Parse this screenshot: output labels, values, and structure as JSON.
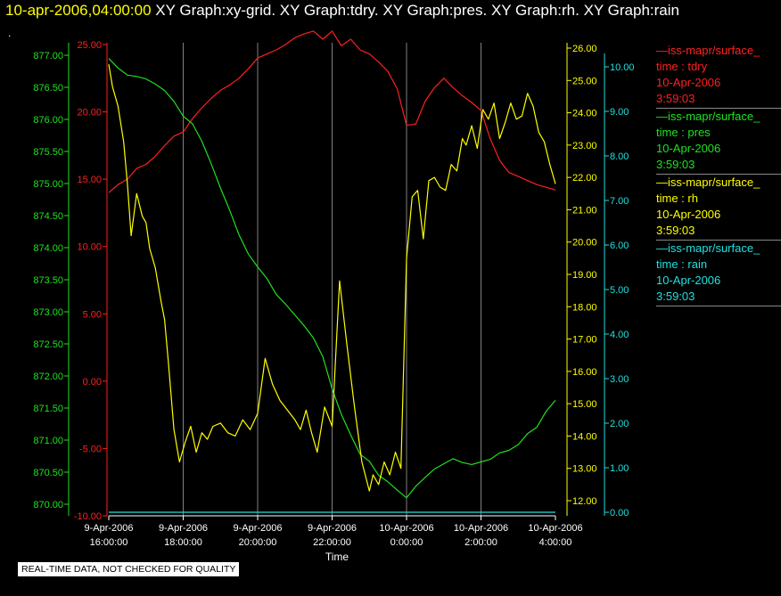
{
  "header": {
    "timestamp": "10-apr-2006,04:00:00",
    "graphs": " XY Graph:xy-grid.  XY Graph:tdry.  XY Graph:pres.  XY Graph:rh.  XY Graph:rain"
  },
  "dot": ".",
  "footer": "REAL-TIME DATA, NOT CHECKED FOR QUALITY",
  "colors": {
    "tdry": "#ff2020",
    "pres": "#20e020",
    "rh": "#ffff00",
    "rain": "#20e0e0",
    "grid": "#808080"
  },
  "legend": [
    {
      "source": "—iss-mapr/surface_",
      "field": "time : tdry",
      "date": "10-Apr-2006",
      "time": "3:59:03",
      "color": "#ff2020"
    },
    {
      "source": "—iss-mapr/surface_",
      "field": "time : pres",
      "date": "10-Apr-2006",
      "time": "3:59:03",
      "color": "#20e020"
    },
    {
      "source": "—iss-mapr/surface_",
      "field": "time : rh",
      "date": "10-Apr-2006",
      "time": "3:59:03",
      "color": "#ffff00"
    },
    {
      "source": "—iss-mapr/surface_",
      "field": "time : rain",
      "date": "10-Apr-2006",
      "time": "3:59:03",
      "color": "#20e0e0"
    }
  ],
  "chart_data": {
    "type": "line",
    "xlabel": "Time",
    "x_ticks": [
      [
        "9-Apr-2006",
        "16:00:00"
      ],
      [
        "9-Apr-2006",
        "18:00:00"
      ],
      [
        "9-Apr-2006",
        "20:00:00"
      ],
      [
        "9-Apr-2006",
        "22:00:00"
      ],
      [
        "10-Apr-2006",
        "0:00:00"
      ],
      [
        "10-Apr-2006",
        "2:00:00"
      ],
      [
        "10-Apr-2006",
        "4:00:00"
      ]
    ],
    "x_range": [
      "9-Apr-2006 16:00:00",
      "10-Apr-2006 4:00:00"
    ],
    "grid": "vertical lines at x ticks",
    "axes": {
      "pres": {
        "ylim": [
          870.0,
          877.0
        ],
        "ticks": [
          "870.00",
          "870.50",
          "871.00",
          "871.50",
          "872.00",
          "872.50",
          "873.00",
          "873.50",
          "874.00",
          "874.50",
          "875.00",
          "875.50",
          "876.00",
          "876.50",
          "877.00"
        ]
      },
      "tdry": {
        "ylim": [
          -10.0,
          25.0
        ],
        "ticks": [
          "-10.00",
          "-5.00",
          "0.00",
          "5.00",
          "10.00",
          "15.00",
          "20.00",
          "25.00"
        ]
      },
      "rh": {
        "ylim": [
          12.0,
          26.0
        ],
        "ticks": [
          "12.00",
          "13.00",
          "14.00",
          "15.00",
          "16.00",
          "17.00",
          "18.00",
          "19.00",
          "20.00",
          "21.00",
          "22.00",
          "23.00",
          "24.00",
          "25.00",
          "26.00"
        ]
      },
      "rain": {
        "ylim": [
          0.0,
          10.0
        ],
        "ticks": [
          "0.00",
          "1.00",
          "2.00",
          "3.00",
          "4.00",
          "5.00",
          "6.00",
          "7.00",
          "8.00",
          "9.00",
          "10.00"
        ]
      }
    },
    "series": [
      {
        "key": "tdry",
        "axis": "tdry",
        "x": [
          0,
          0.25,
          0.5,
          0.75,
          1,
          1.25,
          1.5,
          1.75,
          2,
          2.25,
          2.5,
          2.75,
          3,
          3.25,
          3.5,
          3.75,
          4,
          4.25,
          4.5,
          4.75,
          5,
          5.25,
          5.5,
          5.75,
          6,
          6.25,
          6.5,
          6.75,
          7,
          7.25,
          7.5,
          7.75,
          8,
          8.25,
          8.5,
          8.75,
          9,
          9.25,
          9.5,
          9.75,
          10,
          10.25,
          10.5,
          10.75,
          11,
          11.25,
          11.5,
          11.75,
          12
        ],
        "values": [
          14.0,
          14.6,
          15.0,
          15.8,
          16.1,
          16.7,
          17.5,
          18.2,
          18.5,
          19.5,
          20.3,
          21.0,
          21.6,
          22.0,
          22.5,
          23.2,
          24.0,
          24.3,
          24.6,
          25.0,
          25.5,
          25.8,
          26.0,
          25.4,
          26.0,
          24.9,
          25.4,
          24.6,
          24.3,
          23.7,
          23.0,
          21.7,
          19.0,
          19.1,
          20.8,
          21.8,
          22.5,
          21.8,
          21.2,
          20.7,
          20.1,
          18.0,
          16.4,
          15.5,
          15.2,
          14.9,
          14.6,
          14.4,
          14.2
        ]
      },
      {
        "key": "pres",
        "axis": "pres",
        "x": [
          0,
          0.25,
          0.5,
          0.75,
          1,
          1.25,
          1.5,
          1.75,
          2,
          2.25,
          2.5,
          2.75,
          3,
          3.25,
          3.5,
          3.75,
          4,
          4.25,
          4.5,
          4.75,
          5,
          5.25,
          5.5,
          5.75,
          6,
          6.25,
          6.5,
          6.75,
          7,
          7.25,
          7.5,
          7.75,
          8,
          8.25,
          8.5,
          8.75,
          9,
          9.25,
          9.5,
          9.75,
          10,
          10.25,
          10.5,
          10.75,
          11,
          11.25,
          11.5,
          11.75,
          12
        ],
        "values": [
          876.95,
          876.8,
          876.69,
          876.67,
          876.63,
          876.55,
          876.45,
          876.28,
          876.05,
          875.93,
          875.66,
          875.31,
          874.93,
          874.58,
          874.2,
          873.9,
          873.7,
          873.52,
          873.27,
          873.12,
          872.95,
          872.78,
          872.59,
          872.3,
          871.8,
          871.4,
          871.08,
          870.78,
          870.67,
          870.45,
          870.35,
          870.22,
          870.1,
          870.28,
          870.42,
          870.55,
          870.63,
          870.71,
          870.65,
          870.62,
          870.66,
          870.7,
          870.8,
          870.84,
          870.93,
          871.1,
          871.2,
          871.45,
          871.62
        ]
      },
      {
        "key": "rh",
        "axis": "rh",
        "x": [
          0,
          0.1,
          0.25,
          0.4,
          0.5,
          0.6,
          0.75,
          0.9,
          1,
          1.1,
          1.25,
          1.4,
          1.5,
          1.6,
          1.75,
          1.9,
          2.05,
          2.2,
          2.35,
          2.5,
          2.65,
          2.8,
          3,
          3.2,
          3.4,
          3.6,
          3.8,
          4,
          4.2,
          4.4,
          4.6,
          4.8,
          5,
          5.15,
          5.3,
          5.45,
          5.6,
          5.8,
          6,
          6.2,
          6.4,
          6.6,
          6.8,
          7,
          7.1,
          7.25,
          7.4,
          7.55,
          7.7,
          7.85,
          8,
          8.15,
          8.3,
          8.45,
          8.6,
          8.75,
          8.9,
          9.05,
          9.2,
          9.35,
          9.5,
          9.6,
          9.75,
          9.9,
          10.05,
          10.2,
          10.35,
          10.5,
          10.65,
          10.8,
          10.95,
          11.1,
          11.25,
          11.4,
          11.55,
          11.7,
          11.85,
          12
        ],
        "values": [
          25.5,
          24.8,
          24.2,
          23.1,
          21.8,
          20.2,
          21.5,
          20.8,
          20.6,
          19.8,
          19.2,
          18.2,
          17.6,
          16.3,
          14.2,
          13.2,
          13.8,
          14.3,
          13.5,
          14.1,
          13.9,
          14.3,
          14.4,
          14.1,
          14.0,
          14.5,
          14.2,
          14.7,
          16.4,
          15.6,
          15.1,
          14.8,
          14.5,
          14.2,
          14.8,
          14.1,
          13.5,
          14.9,
          14.3,
          18.8,
          16.8,
          14.9,
          13.2,
          12.3,
          12.8,
          12.5,
          13.2,
          12.8,
          13.5,
          13.0,
          19.5,
          21.4,
          21.6,
          20.1,
          21.9,
          22.0,
          21.7,
          21.6,
          22.4,
          22.2,
          23.2,
          23.0,
          23.6,
          22.9,
          24.1,
          23.8,
          24.3,
          23.2,
          23.7,
          24.3,
          23.8,
          23.9,
          24.6,
          24.2,
          23.4,
          23.1,
          22.4,
          21.8
        ]
      },
      {
        "key": "rain",
        "axis": "rain",
        "x": [
          0,
          12
        ],
        "values": [
          0.0,
          0.0
        ]
      }
    ]
  }
}
